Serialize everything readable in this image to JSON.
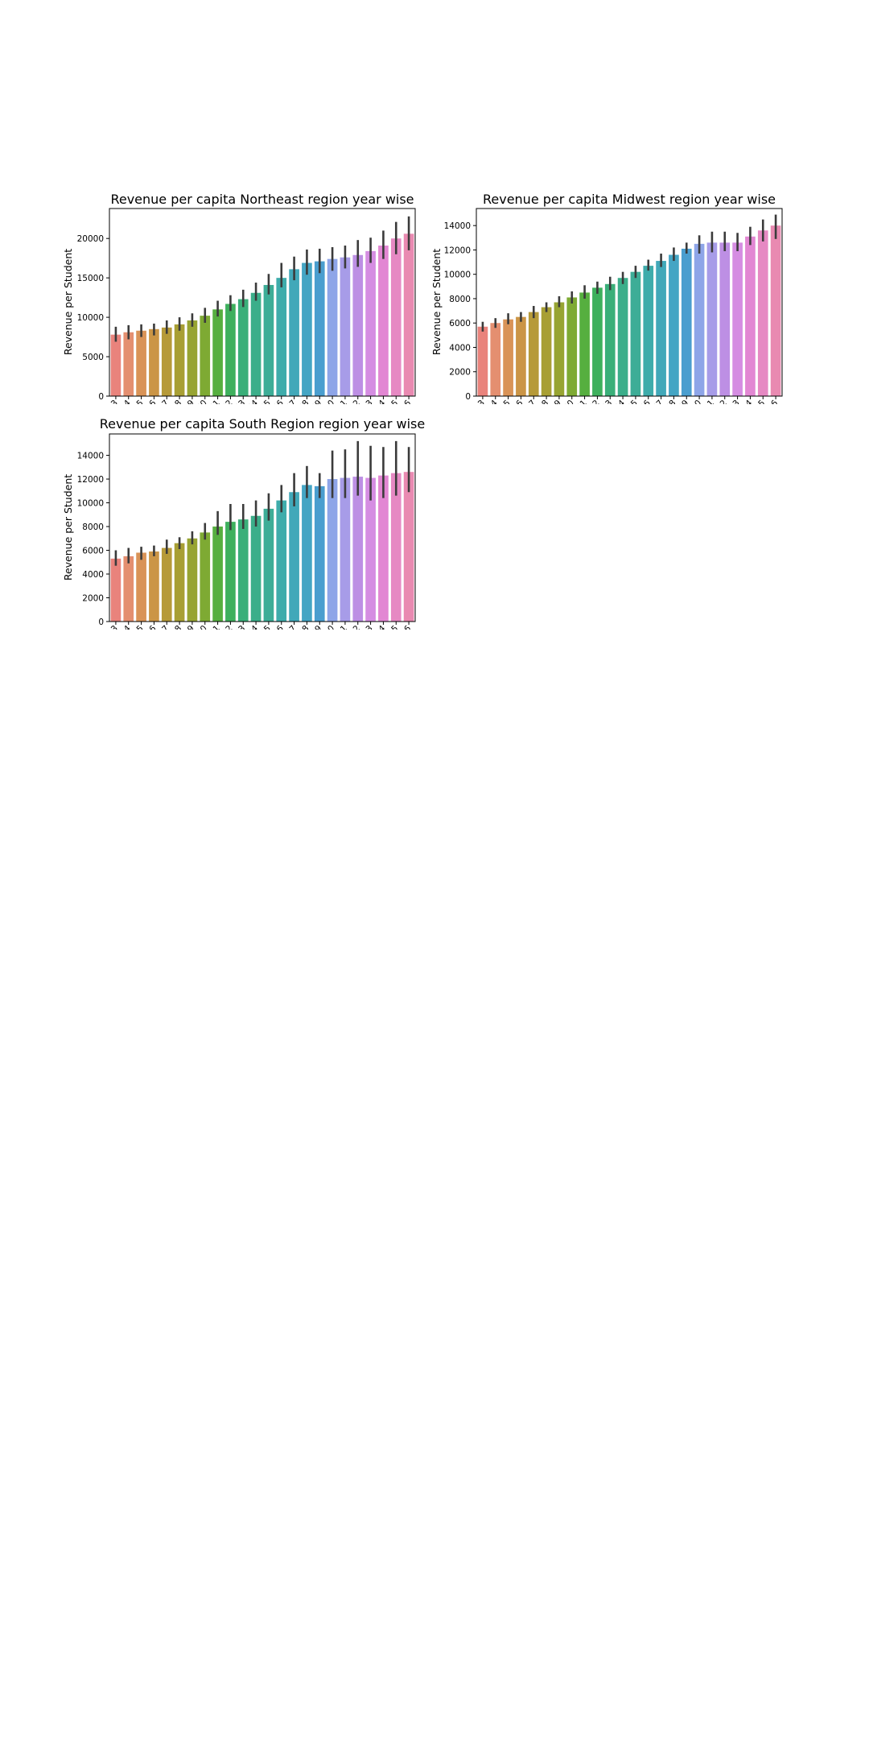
{
  "chart_data": [
    {
      "type": "bar",
      "id": "northeast",
      "title": "Revenue per capita Northeast region year wise",
      "xlabel": "",
      "ylabel": "Revenue per Student",
      "ylim": [
        0,
        23800
      ],
      "yticks": [
        0,
        5000,
        10000,
        15000,
        20000
      ],
      "categories": [
        "1993",
        "1994",
        "1995",
        "1996",
        "1997",
        "1998",
        "1999",
        "2000",
        "2001",
        "2002",
        "2003",
        "2004",
        "2005",
        "2006",
        "2007",
        "2008",
        "2009",
        "2010",
        "2011",
        "2012",
        "2013",
        "2014",
        "2015",
        "2016"
      ],
      "values": [
        7800,
        8100,
        8300,
        8500,
        8700,
        9100,
        9600,
        10200,
        11000,
        11700,
        12300,
        13100,
        14100,
        15000,
        16100,
        16900,
        17100,
        17400,
        17600,
        17900,
        18400,
        19100,
        20000,
        20600
      ],
      "errors": [
        [
          6900,
          8800
        ],
        [
          7200,
          9000
        ],
        [
          7500,
          9100
        ],
        [
          7700,
          9200
        ],
        [
          7900,
          9600
        ],
        [
          8300,
          10000
        ],
        [
          8800,
          10500
        ],
        [
          9300,
          11200
        ],
        [
          10100,
          12100
        ],
        [
          10800,
          12800
        ],
        [
          11300,
          13500
        ],
        [
          12100,
          14400
        ],
        [
          12900,
          15500
        ],
        [
          13800,
          16900
        ],
        [
          14700,
          17700
        ],
        [
          15400,
          18600
        ],
        [
          15600,
          18700
        ],
        [
          15900,
          18900
        ],
        [
          16200,
          19100
        ],
        [
          16400,
          19800
        ],
        [
          16900,
          20100
        ],
        [
          17400,
          21000
        ],
        [
          18000,
          22100
        ],
        [
          18500,
          22800
        ]
      ],
      "colors": [
        "#e9837c",
        "#e48f70",
        "#d99357",
        "#cb9546",
        "#b69a39",
        "#a89f34",
        "#97a432",
        "#7eaa33",
        "#56af3f",
        "#3eb05d",
        "#3aaf79",
        "#3bae8a",
        "#3dad97",
        "#3eacab",
        "#41a8b9",
        "#44a5c4",
        "#4a9ecf",
        "#8ea5e8",
        "#a79ce8",
        "#bd8fe4",
        "#d58de2",
        "#e287d3",
        "#e689c3",
        "#e98ab1"
      ]
    },
    {
      "type": "bar",
      "id": "midwest",
      "title": "Revenue per capita Midwest region year wise",
      "xlabel": "",
      "ylabel": "Revenue per Student",
      "ylim": [
        0,
        15400
      ],
      "yticks": [
        0,
        2000,
        4000,
        6000,
        8000,
        10000,
        12000,
        14000
      ],
      "categories": [
        "1993",
        "1994",
        "1995",
        "1996",
        "1997",
        "1998",
        "1999",
        "2000",
        "2001",
        "2002",
        "2003",
        "2004",
        "2005",
        "2006",
        "2007",
        "2008",
        "2009",
        "2010",
        "2011",
        "2012",
        "2013",
        "2014",
        "2015",
        "2016"
      ],
      "values": [
        5700,
        6000,
        6300,
        6500,
        6900,
        7300,
        7700,
        8100,
        8500,
        8900,
        9200,
        9700,
        10200,
        10700,
        11100,
        11600,
        12100,
        12500,
        12600,
        12600,
        12600,
        13100,
        13600,
        14000
      ],
      "errors": [
        [
          5300,
          6100
        ],
        [
          5600,
          6400
        ],
        [
          5900,
          6800
        ],
        [
          6100,
          6900
        ],
        [
          6400,
          7400
        ],
        [
          6900,
          7700
        ],
        [
          7300,
          8200
        ],
        [
          7600,
          8600
        ],
        [
          8000,
          9100
        ],
        [
          8400,
          9400
        ],
        [
          8700,
          9800
        ],
        [
          9200,
          10200
        ],
        [
          9700,
          10700
        ],
        [
          10300,
          11200
        ],
        [
          10600,
          11700
        ],
        [
          11100,
          12200
        ],
        [
          11700,
          12600
        ],
        [
          11700,
          13200
        ],
        [
          11800,
          13500
        ],
        [
          11900,
          13500
        ],
        [
          11900,
          13400
        ],
        [
          12400,
          13900
        ],
        [
          12700,
          14500
        ],
        [
          12900,
          14900
        ]
      ],
      "colors": [
        "#e9837c",
        "#e48f70",
        "#d99357",
        "#cb9546",
        "#b69a39",
        "#a89f34",
        "#97a432",
        "#7eaa33",
        "#56af3f",
        "#3eb05d",
        "#3aaf79",
        "#3bae8a",
        "#3dad97",
        "#3eacab",
        "#41a8b9",
        "#44a5c4",
        "#4a9ecf",
        "#8ea5e8",
        "#a79ce8",
        "#bd8fe4",
        "#d58de2",
        "#e287d3",
        "#e689c3",
        "#e98ab1"
      ]
    },
    {
      "type": "bar",
      "id": "south",
      "title": "Revenue per capita South Region region year wise",
      "xlabel": "",
      "ylabel": "Revenue per Student",
      "ylim": [
        0,
        15800
      ],
      "yticks": [
        0,
        2000,
        4000,
        6000,
        8000,
        10000,
        12000,
        14000
      ],
      "categories": [
        "1993",
        "1994",
        "1995",
        "1996",
        "1997",
        "1998",
        "1999",
        "2000",
        "2001",
        "2002",
        "2003",
        "2004",
        "2005",
        "2006",
        "2007",
        "2008",
        "2009",
        "2010",
        "2011",
        "2012",
        "2013",
        "2014",
        "2015",
        "2016"
      ],
      "values": [
        5300,
        5500,
        5800,
        5900,
        6200,
        6600,
        7000,
        7500,
        8000,
        8400,
        8600,
        8900,
        9500,
        10200,
        10900,
        11500,
        11400,
        12000,
        12100,
        12200,
        12100,
        12300,
        12500,
        12600
      ],
      "errors": [
        [
          4700,
          6000
        ],
        [
          4900,
          6200
        ],
        [
          5200,
          6300
        ],
        [
          5500,
          6400
        ],
        [
          5700,
          6900
        ],
        [
          6100,
          7100
        ],
        [
          6500,
          7600
        ],
        [
          6900,
          8300
        ],
        [
          7300,
          9300
        ],
        [
          7700,
          9900
        ],
        [
          7800,
          9900
        ],
        [
          8000,
          10200
        ],
        [
          8500,
          10800
        ],
        [
          9200,
          11500
        ],
        [
          9700,
          12500
        ],
        [
          10400,
          13100
        ],
        [
          10400,
          12500
        ],
        [
          10400,
          14400
        ],
        [
          10400,
          14500
        ],
        [
          10600,
          15200
        ],
        [
          10200,
          14800
        ],
        [
          10400,
          14700
        ],
        [
          10600,
          15200
        ],
        [
          10900,
          14700
        ]
      ],
      "colors": [
        "#e9837c",
        "#e48f70",
        "#d99357",
        "#cb9546",
        "#b69a39",
        "#a89f34",
        "#97a432",
        "#7eaa33",
        "#56af3f",
        "#3eb05d",
        "#3aaf79",
        "#3bae8a",
        "#3dad97",
        "#3eacab",
        "#41a8b9",
        "#44a5c4",
        "#4a9ecf",
        "#8ea5e8",
        "#a79ce8",
        "#bd8fe4",
        "#d58de2",
        "#e287d3",
        "#e689c3",
        "#e98ab1"
      ]
    }
  ]
}
